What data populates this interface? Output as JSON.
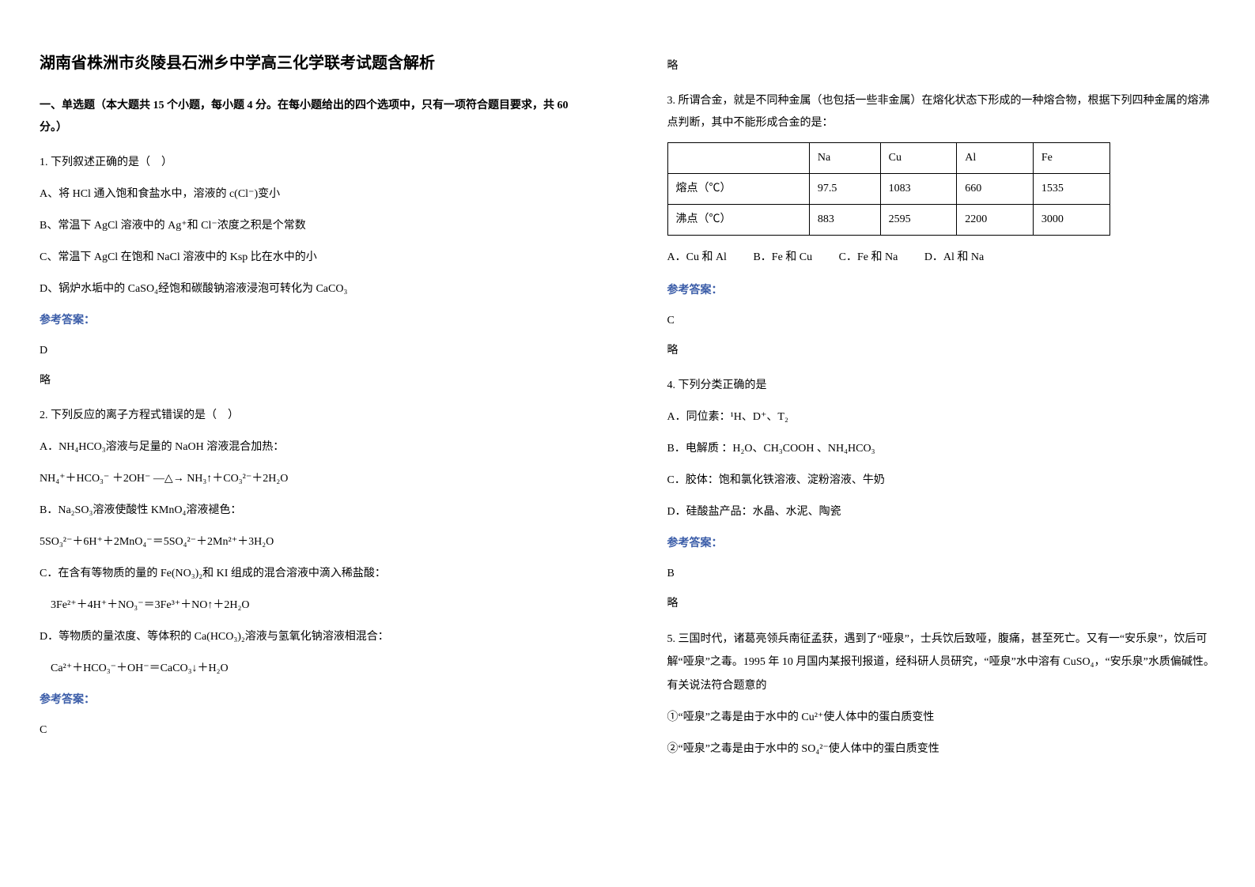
{
  "left": {
    "title": "湖南省株洲市炎陵县石洲乡中学高三化学联考试题含解析",
    "section1_header": "一、单选题（本大题共 15 个小题，每小题 4 分。在每小题给出的四个选项中，只有一项符合题目要求，共 60 分。）",
    "q1": {
      "num": "1. 下列叙述正确的是（　）",
      "optA": "A、将 HCl 通入饱和食盐水中，溶液的 c(Cl⁻)变小",
      "optB": "B、常温下 AgCl 溶液中的 Ag⁺和 Cl⁻浓度之积是个常数",
      "optC": "C、常温下 AgCl 在饱和 NaCl 溶液中的 Ksp 比在水中的小",
      "optD": "D、锅炉水垢中的 CaSO₄经饱和碳酸钠溶液浸泡可转化为 CaCO₃",
      "answer_label": "参考答案：",
      "answer": "D",
      "note": "略"
    },
    "q2": {
      "num": "2. 下列反应的离子方程式错误的是（　）",
      "optA_l1": "A．NH₄HCO₃溶液与足量的 NaOH 溶液混合加热：",
      "optA_l2": "NH₄⁺＋HCO₃⁻ ＋2OH⁻ —△→ NH₃↑＋CO₃²⁻＋2H₂O",
      "optB_l1": "B．Na₂SO₃溶液使酸性 KMnO₄溶液褪色：",
      "optB_l2": "5SO₃²⁻＋6H⁺＋2MnO₄⁻＝5SO₄²⁻＋2Mn²⁺＋3H₂O",
      "optC_l1": "C．在含有等物质的量的 Fe(NO₃)₂和 KI 组成的混合溶液中滴入稀盐酸：",
      "optC_l2": "3Fe²⁺＋4H⁺＋NO₃⁻＝3Fe³⁺＋NO↑＋2H₂O",
      "optD_l1": "D．等物质的量浓度、等体积的 Ca(HCO₃)₂溶液与氢氧化钠溶液相混合：",
      "optD_l2": "Ca²⁺＋HCO₃⁻＋OH⁻＝CaCO₃↓＋H₂O",
      "answer_label": "参考答案：",
      "answer": "C"
    }
  },
  "right": {
    "note_top": "略",
    "q3": {
      "num": "3. 所谓合金，就是不同种金属（也包括一些非金属）在熔化状态下形成的一种熔合物，根据下列四种金属的熔沸点判断，其中不能形成合金的是：",
      "table": {
        "header": [
          "",
          "Na",
          "Cu",
          "Al",
          "Fe"
        ],
        "row1": [
          "熔点（℃）",
          "97.5",
          "1083",
          "660",
          "1535"
        ],
        "row2": [
          "沸点（℃）",
          "883",
          "2595",
          "2200",
          "3000"
        ]
      },
      "optA": "A．Cu 和 Al",
      "optB": "B．Fe 和 Cu",
      "optC": "C．Fe 和 Na",
      "optD": "D．Al 和 Na",
      "answer_label": "参考答案：",
      "answer": "C",
      "note": "略"
    },
    "q4": {
      "num": "4. 下列分类正确的是",
      "optA": "A．同位素：¹H、D⁺、T₂",
      "optB": "B．电解质 ：H₂O、CH₃COOH 、NH₄HCO₃",
      "optC": "C．胶体：饱和氯化铁溶液、淀粉溶液、牛奶",
      "optD": "D．硅酸盐产品：水晶、水泥、陶瓷",
      "answer_label": "参考答案：",
      "answer": "B",
      "note": "略"
    },
    "q5": {
      "num": "5. 三国时代，诸葛亮领兵南征孟获，遇到了“哑泉”，士兵饮后致哑，腹痛，甚至死亡。又有一“安乐泉”，饮后可解“哑泉”之毒。1995 年 10 月国内某报刊报道，经科研人员研究，“哑泉”水中溶有 CuSO₄，“安乐泉”水质偏碱性。有关说法符合题意的",
      "p1": "①“哑泉”之毒是由于水中的 Cu²⁺使人体中的蛋白质变性",
      "p2": "②“哑泉”之毒是由于水中的 SO₄²⁻使人体中的蛋白质变性"
    }
  }
}
